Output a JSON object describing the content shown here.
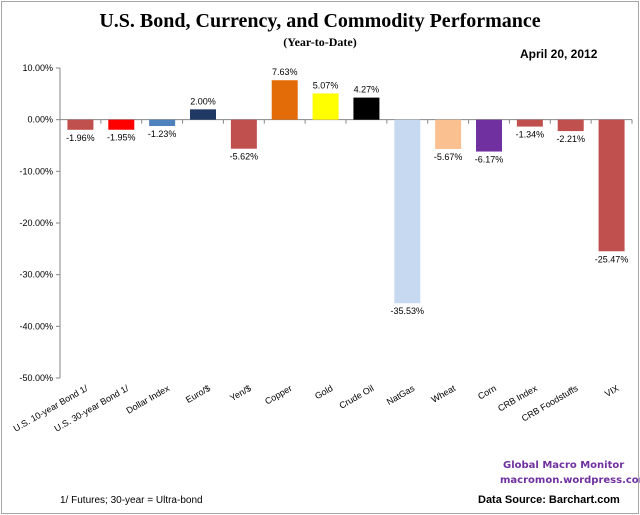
{
  "chart_data": {
    "type": "bar",
    "title": "U.S. Bond, Currency, and Commodity Performance",
    "subtitle": "(Year-to-Date)",
    "date": "April 20, 2012",
    "categories": [
      "U.S. 10-year Bond 1/",
      "U.S. 30-year Bond 1/",
      "Dollar Index",
      "Euro/$",
      "Yen/$",
      "Copper",
      "Gold",
      "Crude Oil",
      "NatGas",
      "Wheat",
      "Corn",
      "CRB Index",
      "CRB Foodstuffs",
      "VIX"
    ],
    "values": [
      -1.96,
      -1.95,
      -1.23,
      2.0,
      -5.62,
      7.63,
      5.07,
      4.27,
      -35.53,
      -5.67,
      -6.17,
      -1.34,
      -2.21,
      -25.47
    ],
    "data_labels": [
      "-1.96%",
      "-1.95%",
      "-1.23%",
      "2.00%",
      "-5.62%",
      "7.63%",
      "5.07%",
      "4.27%",
      "-35.53%",
      "-5.67%",
      "-6.17%",
      "-1.34%",
      "-2.21%",
      "-25.47%"
    ],
    "colors": [
      "#c0504d",
      "#ff0000",
      "#4f81bd",
      "#1f3864",
      "#c0504d",
      "#e36c09",
      "#ffff00",
      "#000000",
      "#c6d9f1",
      "#fac090",
      "#7030a0",
      "#c0504d",
      "#c0504d",
      "#c0504d"
    ],
    "ylim": [
      -50,
      10
    ],
    "yticks": [
      "10.00%",
      "0.00%",
      "-10.00%",
      "-20.00%",
      "-30.00%",
      "-40.00%",
      "-50.00%"
    ],
    "ytick_values": [
      10,
      0,
      -10,
      -20,
      -30,
      -40,
      -50
    ],
    "grid": false,
    "xlabel": "",
    "ylabel": ""
  },
  "footnote": "1/  Futures; 30-year = Ultra-bond",
  "credit": {
    "line1": "Global Macro Monitor",
    "line2": "macromon.wordpress.com"
  },
  "source": "Data Source:  Barchart.com"
}
